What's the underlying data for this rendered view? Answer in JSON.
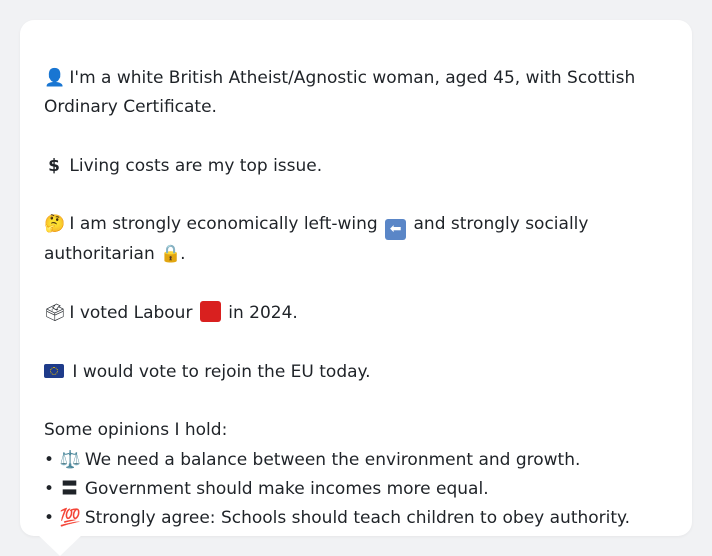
{
  "intro": {
    "icon": "person-icon",
    "text": "I'm a white British Atheist/Agnostic woman, aged 45, with Scottish Ordinary Certificate."
  },
  "issue": {
    "icon": "dollar-icon",
    "text": "Living costs are my top issue."
  },
  "position": {
    "icon": "thinking-face-icon",
    "text_a": "I am strongly economically left-wing",
    "left_arrow_icon": "left-arrow-icon",
    "text_b": "and strongly socially authoritarian",
    "lock_icon": "lock-icon",
    "text_end": "."
  },
  "vote": {
    "icon": "ballot-box-icon",
    "text_a": "I voted Labour",
    "party_icon": "red-square-icon",
    "text_b": "in 2024.",
    "party_color": "#d9201f"
  },
  "eu": {
    "icon": "eu-flag-icon",
    "text": "I would vote to rejoin the EU today."
  },
  "opinions": {
    "heading": "Some opinions I hold:",
    "items": [
      {
        "bullet": "•",
        "icon": "balance-scale-icon",
        "glyph": "⚖️",
        "text": "We need a balance between the environment and growth."
      },
      {
        "bullet": "•",
        "icon": "equals-icon",
        "glyph": "〓",
        "text": "Government should make incomes more equal."
      },
      {
        "bullet": "•",
        "icon": "hundred-points-icon",
        "glyph": "💯",
        "text": "Strongly agree: Schools should teach children to obey authority."
      }
    ]
  },
  "colors": {
    "page_bg": "#f1f2f4",
    "bubble_bg": "#ffffff",
    "text": "#1f2328"
  }
}
